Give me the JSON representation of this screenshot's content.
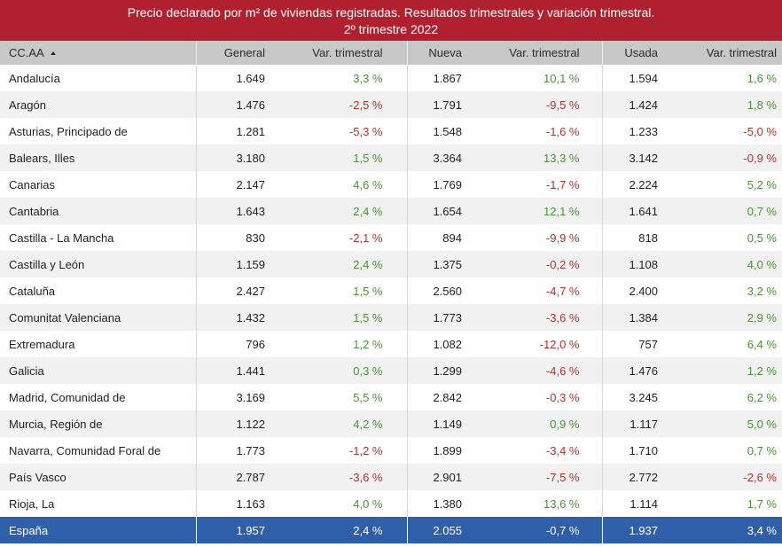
{
  "title": {
    "line1": "Precio declarado por m² de viviendas registradas. Resultados trimestrales y variación trimestral.",
    "line2": "2º trimestre 2022"
  },
  "columns": [
    "CC.AA",
    "General",
    "Var. trimestral",
    "Nueva",
    "Var. trimestral",
    "Usada",
    "Var. trimestral"
  ],
  "sort_icon": "sort-ascending-icon",
  "rows": [
    {
      "region": "Andalucía",
      "general": "1.649",
      "general_var": "3,3 %",
      "nueva": "1.867",
      "nueva_var": "10,1 %",
      "usada": "1.594",
      "usada_var": "1,6 %"
    },
    {
      "region": "Aragón",
      "general": "1.476",
      "general_var": "-2,5 %",
      "nueva": "1.791",
      "nueva_var": "-9,5 %",
      "usada": "1.424",
      "usada_var": "1,8 %"
    },
    {
      "region": "Asturias, Principado de",
      "general": "1.281",
      "general_var": "-5,3 %",
      "nueva": "1.548",
      "nueva_var": "-1,6 %",
      "usada": "1.233",
      "usada_var": "-5,0 %"
    },
    {
      "region": "Balears, Illes",
      "general": "3.180",
      "general_var": "1,5 %",
      "nueva": "3.364",
      "nueva_var": "13,3 %",
      "usada": "3.142",
      "usada_var": "-0,9 %"
    },
    {
      "region": "Canarias",
      "general": "2.147",
      "general_var": "4,6 %",
      "nueva": "1.769",
      "nueva_var": "-1,7 %",
      "usada": "2.224",
      "usada_var": "5,2 %"
    },
    {
      "region": "Cantabria",
      "general": "1.643",
      "general_var": "2,4 %",
      "nueva": "1.654",
      "nueva_var": "12,1 %",
      "usada": "1.641",
      "usada_var": "0,7 %"
    },
    {
      "region": "Castilla - La Mancha",
      "general": "830",
      "general_var": "-2,1 %",
      "nueva": "894",
      "nueva_var": "-9,9 %",
      "usada": "818",
      "usada_var": "0,5 %"
    },
    {
      "region": "Castilla y León",
      "general": "1.159",
      "general_var": "2,4 %",
      "nueva": "1.375",
      "nueva_var": "-0,2 %",
      "usada": "1.108",
      "usada_var": "4,0 %"
    },
    {
      "region": "Cataluña",
      "general": "2.427",
      "general_var": "1,5 %",
      "nueva": "2.560",
      "nueva_var": "-4,7 %",
      "usada": "2.400",
      "usada_var": "3,2 %"
    },
    {
      "region": "Comunitat Valenciana",
      "general": "1.432",
      "general_var": "1,5 %",
      "nueva": "1.773",
      "nueva_var": "-3,6 %",
      "usada": "1.384",
      "usada_var": "2,9 %"
    },
    {
      "region": "Extremadura",
      "general": "796",
      "general_var": "1,2 %",
      "nueva": "1.082",
      "nueva_var": "-12,0 %",
      "usada": "757",
      "usada_var": "6,4 %"
    },
    {
      "region": "Galicia",
      "general": "1.441",
      "general_var": "0,3 %",
      "nueva": "1.299",
      "nueva_var": "-4,6 %",
      "usada": "1.476",
      "usada_var": "1,2 %"
    },
    {
      "region": "Madrid, Comunidad de",
      "general": "3.169",
      "general_var": "5,5 %",
      "nueva": "2.842",
      "nueva_var": "-0,3 %",
      "usada": "3.245",
      "usada_var": "6,2 %"
    },
    {
      "region": "Murcia, Región de",
      "general": "1.122",
      "general_var": "4,2 %",
      "nueva": "1.149",
      "nueva_var": "0,9 %",
      "usada": "1.117",
      "usada_var": "5,0 %"
    },
    {
      "region": "Navarra, Comunidad Foral de",
      "general": "1.773",
      "general_var": "-1,2 %",
      "nueva": "1.899",
      "nueva_var": "-3,4 %",
      "usada": "1.710",
      "usada_var": "0,7 %"
    },
    {
      "region": "País Vasco",
      "general": "2.787",
      "general_var": "-3,6 %",
      "nueva": "2.901",
      "nueva_var": "-7,5 %",
      "usada": "2.772",
      "usada_var": "-2,6 %"
    },
    {
      "region": "Rioja, La",
      "general": "1.163",
      "general_var": "4,0 %",
      "nueva": "1.380",
      "nueva_var": "13,6 %",
      "usada": "1.114",
      "usada_var": "1,7 %"
    }
  ],
  "total": {
    "region": "España",
    "general": "1.957",
    "general_var": "2,4 %",
    "nueva": "2.055",
    "nueva_var": "-0,7 %",
    "usada": "1.937",
    "usada_var": "3,4 %"
  },
  "colors": {
    "banner": "#b0202f",
    "header_bg": "#c8c8c8",
    "row_alt": "#f1f1f1",
    "positive": "#4a9236",
    "negative": "#b3302b",
    "total_bg": "#2f5fa8",
    "separator": "#d6d6d6"
  }
}
